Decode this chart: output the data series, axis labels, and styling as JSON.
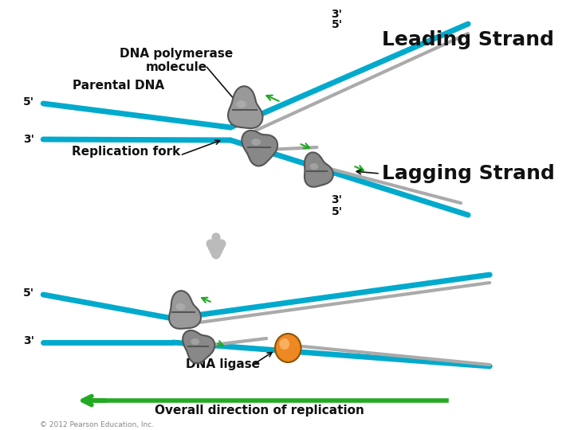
{
  "bg_color": "#ffffff",
  "blue_color": "#00aacc",
  "gray_strand_color": "#aaaaaa",
  "green_arrow_color": "#22aa22",
  "green_line_color": "#22aa22",
  "polymerase_color": "#888888",
  "ligase_color": "#ee8822",
  "dark_text": "#111111",
  "label_leading": "Leading Strand",
  "label_lagging": "Lagging Strand",
  "label_parental": "Parental DNA",
  "label_repfork": "Replication fork",
  "label_polymerase": "DNA polymerase\nmolecule",
  "label_ligase": "DNA ligase",
  "label_overall": "Overall direction of replication",
  "label_copyright": "© 2012 Pearson Education, Inc.",
  "title_fontsize": 18,
  "label_fontsize": 11,
  "small_fontsize": 9,
  "prime_fontsize": 10
}
